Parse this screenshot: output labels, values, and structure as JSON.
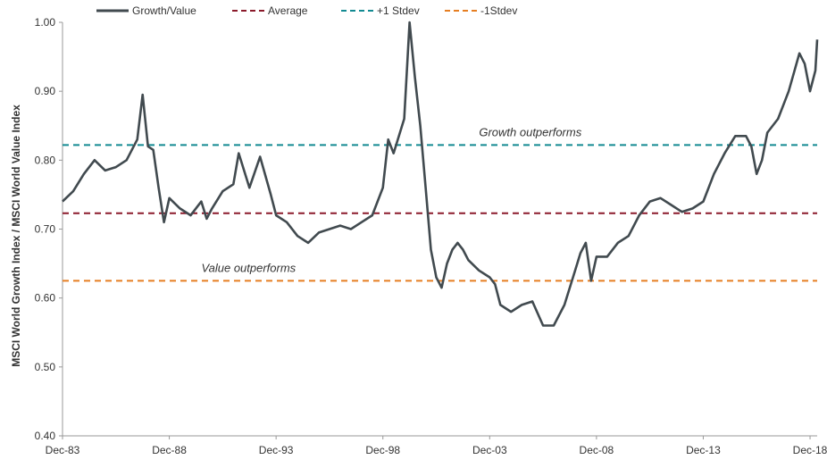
{
  "chart_data": {
    "type": "line",
    "title": "",
    "xlabel": "",
    "ylabel": "MSCI World Growth Index / MSCI World Value Index",
    "ylim": [
      0.4,
      1.0
    ],
    "xlim": [
      "1983-12",
      "2019-04"
    ],
    "yticks": [
      "0.40",
      "0.50",
      "0.60",
      "0.70",
      "0.80",
      "0.90",
      "1.00"
    ],
    "xticks": [
      "Dec-83",
      "Dec-88",
      "Dec-93",
      "Dec-98",
      "Dec-03",
      "Dec-08",
      "Dec-13",
      "Dec-18"
    ],
    "grid": false,
    "legend_position": "top",
    "series": [
      {
        "name": "Growth/Value",
        "color": "#414a4f",
        "style": "solid",
        "points": [
          [
            "1983-12",
            0.74
          ],
          [
            "1984-06",
            0.755
          ],
          [
            "1984-12",
            0.78
          ],
          [
            "1985-06",
            0.8
          ],
          [
            "1985-12",
            0.785
          ],
          [
            "1986-06",
            0.79
          ],
          [
            "1986-12",
            0.8
          ],
          [
            "1987-06",
            0.83
          ],
          [
            "1987-09",
            0.895
          ],
          [
            "1987-12",
            0.82
          ],
          [
            "1988-03",
            0.815
          ],
          [
            "1988-06",
            0.76
          ],
          [
            "1988-09",
            0.71
          ],
          [
            "1988-12",
            0.745
          ],
          [
            "1989-06",
            0.73
          ],
          [
            "1989-12",
            0.72
          ],
          [
            "1990-06",
            0.74
          ],
          [
            "1990-09",
            0.715
          ],
          [
            "1990-12",
            0.73
          ],
          [
            "1991-06",
            0.755
          ],
          [
            "1991-12",
            0.765
          ],
          [
            "1992-03",
            0.81
          ],
          [
            "1992-09",
            0.76
          ],
          [
            "1993-03",
            0.805
          ],
          [
            "1993-09",
            0.75
          ],
          [
            "1993-12",
            0.72
          ],
          [
            "1994-06",
            0.71
          ],
          [
            "1994-12",
            0.69
          ],
          [
            "1995-06",
            0.68
          ],
          [
            "1995-12",
            0.695
          ],
          [
            "1996-06",
            0.7
          ],
          [
            "1996-12",
            0.705
          ],
          [
            "1997-06",
            0.7
          ],
          [
            "1997-12",
            0.71
          ],
          [
            "1998-06",
            0.72
          ],
          [
            "1998-12",
            0.76
          ],
          [
            "1999-03",
            0.83
          ],
          [
            "1999-06",
            0.81
          ],
          [
            "1999-12",
            0.86
          ],
          [
            "2000-03",
            1.0
          ],
          [
            "2000-06",
            0.92
          ],
          [
            "2000-09",
            0.85
          ],
          [
            "2000-12",
            0.76
          ],
          [
            "2001-03",
            0.67
          ],
          [
            "2001-06",
            0.63
          ],
          [
            "2001-09",
            0.615
          ],
          [
            "2001-12",
            0.65
          ],
          [
            "2002-03",
            0.67
          ],
          [
            "2002-06",
            0.68
          ],
          [
            "2002-09",
            0.67
          ],
          [
            "2002-12",
            0.655
          ],
          [
            "2003-06",
            0.64
          ],
          [
            "2003-12",
            0.63
          ],
          [
            "2004-03",
            0.62
          ],
          [
            "2004-06",
            0.59
          ],
          [
            "2004-12",
            0.58
          ],
          [
            "2005-06",
            0.59
          ],
          [
            "2005-12",
            0.595
          ],
          [
            "2006-06",
            0.56
          ],
          [
            "2006-12",
            0.56
          ],
          [
            "2007-06",
            0.59
          ],
          [
            "2007-12",
            0.64
          ],
          [
            "2008-03",
            0.665
          ],
          [
            "2008-06",
            0.68
          ],
          [
            "2008-09",
            0.625
          ],
          [
            "2008-12",
            0.66
          ],
          [
            "2009-06",
            0.66
          ],
          [
            "2009-12",
            0.68
          ],
          [
            "2010-06",
            0.69
          ],
          [
            "2010-12",
            0.72
          ],
          [
            "2011-06",
            0.74
          ],
          [
            "2011-12",
            0.745
          ],
          [
            "2012-06",
            0.735
          ],
          [
            "2012-12",
            0.725
          ],
          [
            "2013-06",
            0.73
          ],
          [
            "2013-12",
            0.74
          ],
          [
            "2014-06",
            0.78
          ],
          [
            "2014-12",
            0.81
          ],
          [
            "2015-06",
            0.835
          ],
          [
            "2015-12",
            0.835
          ],
          [
            "2016-03",
            0.82
          ],
          [
            "2016-06",
            0.78
          ],
          [
            "2016-09",
            0.8
          ],
          [
            "2016-12",
            0.84
          ],
          [
            "2017-06",
            0.86
          ],
          [
            "2017-12",
            0.9
          ],
          [
            "2018-06",
            0.955
          ],
          [
            "2018-09",
            0.94
          ],
          [
            "2018-12",
            0.9
          ],
          [
            "2019-03",
            0.93
          ],
          [
            "2019-04",
            0.975
          ]
        ]
      },
      {
        "name": "Average",
        "color": "#8b1a2b",
        "style": "dashed",
        "value": 0.723
      },
      {
        "name": "+1 Stdev",
        "color": "#138a92",
        "style": "dashed",
        "value": 0.822
      },
      {
        "name": "-1Stdev",
        "color": "#e67e22",
        "style": "dashed",
        "value": 0.625
      }
    ],
    "annotations": [
      {
        "text": "Growth outperforms",
        "x": "2003-06",
        "y": 0.835
      },
      {
        "text": "Value outperforms",
        "x": "1990-06",
        "y": 0.638
      }
    ]
  }
}
